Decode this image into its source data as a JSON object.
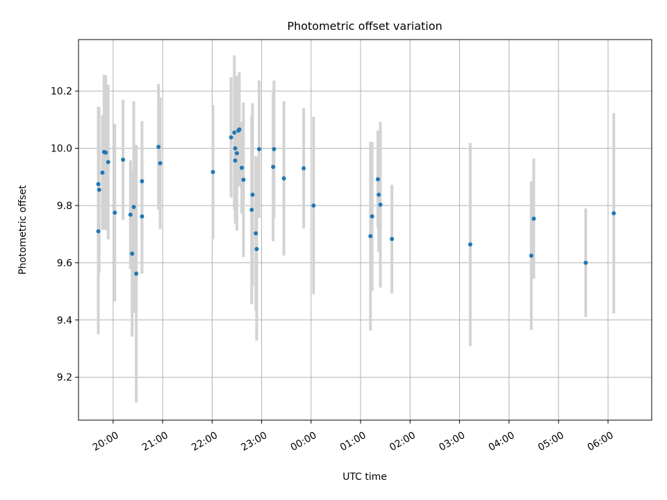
{
  "chart_data": {
    "type": "scatter",
    "title": "Photometric offset variation",
    "xlabel": "UTC time",
    "ylabel": "Photometric offset",
    "grid": true,
    "x_axis_type": "time",
    "x_ticks": [
      "20:00",
      "21:00",
      "22:00",
      "23:00",
      "00:00",
      "01:00",
      "02:00",
      "03:00",
      "04:00",
      "05:00",
      "06:00"
    ],
    "y_ticks": [
      "9.2",
      "9.4",
      "9.6",
      "9.8",
      "10.0",
      "10.2"
    ],
    "xlim": [
      "19:18",
      "06:53"
    ],
    "ylim": [
      9.05,
      10.38
    ],
    "colors": {
      "point": "#1f77b4",
      "errorbar": "#d3d3d3",
      "grid": "#b0b0b0"
    },
    "series": [
      {
        "x": [
          "19:42",
          "19:42",
          "19:43",
          "19:47",
          "19:49",
          "19:51",
          "19:54",
          "20:02",
          "20:12",
          "20:21",
          "20:23",
          "20:25",
          "20:28",
          "20:35",
          "20:35"
        ],
        "y": [
          9.71,
          9.875,
          9.855,
          9.915,
          9.987,
          9.985,
          9.952,
          9.775,
          9.96,
          9.768,
          9.632,
          9.795,
          9.562,
          9.885,
          9.762
        ],
        "yerr": [
          0.36,
          0.27,
          0.29,
          0.2,
          0.27,
          0.27,
          0.27,
          0.31,
          0.21,
          0.19,
          0.29,
          0.37,
          0.45,
          0.21,
          0.2
        ]
      },
      {
        "x": [
          "20:55",
          "20:57"
        ],
        "y": [
          10.005,
          9.948
        ],
        "yerr": [
          0.22,
          0.23
        ]
      },
      {
        "x": [
          "22:01"
        ],
        "y": [
          9.917
        ],
        "yerr": [
          0.235
        ]
      },
      {
        "x": [
          "22:23",
          "22:27",
          "22:28",
          "22:28",
          "22:30",
          "22:32",
          "22:33",
          "22:36",
          "22:38"
        ],
        "y": [
          10.038,
          10.055,
          10.0,
          9.957,
          9.983,
          10.062,
          10.066,
          9.932,
          9.89
        ],
        "yerr": [
          0.21,
          0.27,
          0.25,
          0.22,
          0.27,
          0.19,
          0.2,
          0.16,
          0.27
        ]
      },
      {
        "x": [
          "22:48",
          "22:49",
          "22:53",
          "22:54",
          "22:57"
        ],
        "y": [
          9.785,
          9.838,
          9.703,
          9.648,
          9.997
        ],
        "yerr": [
          0.33,
          0.32,
          0.27,
          0.32,
          0.24
        ]
      },
      {
        "x": [
          "23:14",
          "23:15",
          "23:27"
        ],
        "y": [
          9.935,
          9.997,
          9.895
        ],
        "yerr": [
          0.26,
          0.24,
          0.27
        ]
      },
      {
        "x": [
          "23:51",
          "00:03"
        ],
        "y": [
          9.93,
          9.8
        ],
        "yerr": [
          0.21,
          0.31
        ]
      },
      {
        "x": [
          "01:12",
          "01:14",
          "01:21",
          "01:22",
          "01:24",
          "01:38"
        ],
        "y": [
          9.693,
          9.762,
          9.892,
          9.838,
          9.803,
          9.683
        ],
        "yerr": [
          0.33,
          0.26,
          0.17,
          0.2,
          0.29,
          0.19
        ]
      },
      {
        "x": [
          "03:13"
        ],
        "y": [
          9.664
        ],
        "yerr": [
          0.355
        ]
      },
      {
        "x": [
          "04:27",
          "04:30"
        ],
        "y": [
          9.625,
          9.754
        ],
        "yerr": [
          0.26,
          0.21
        ]
      },
      {
        "x": [
          "05:33",
          "06:07"
        ],
        "y": [
          9.6,
          9.773
        ],
        "yerr": [
          0.19,
          0.35
        ]
      }
    ]
  }
}
